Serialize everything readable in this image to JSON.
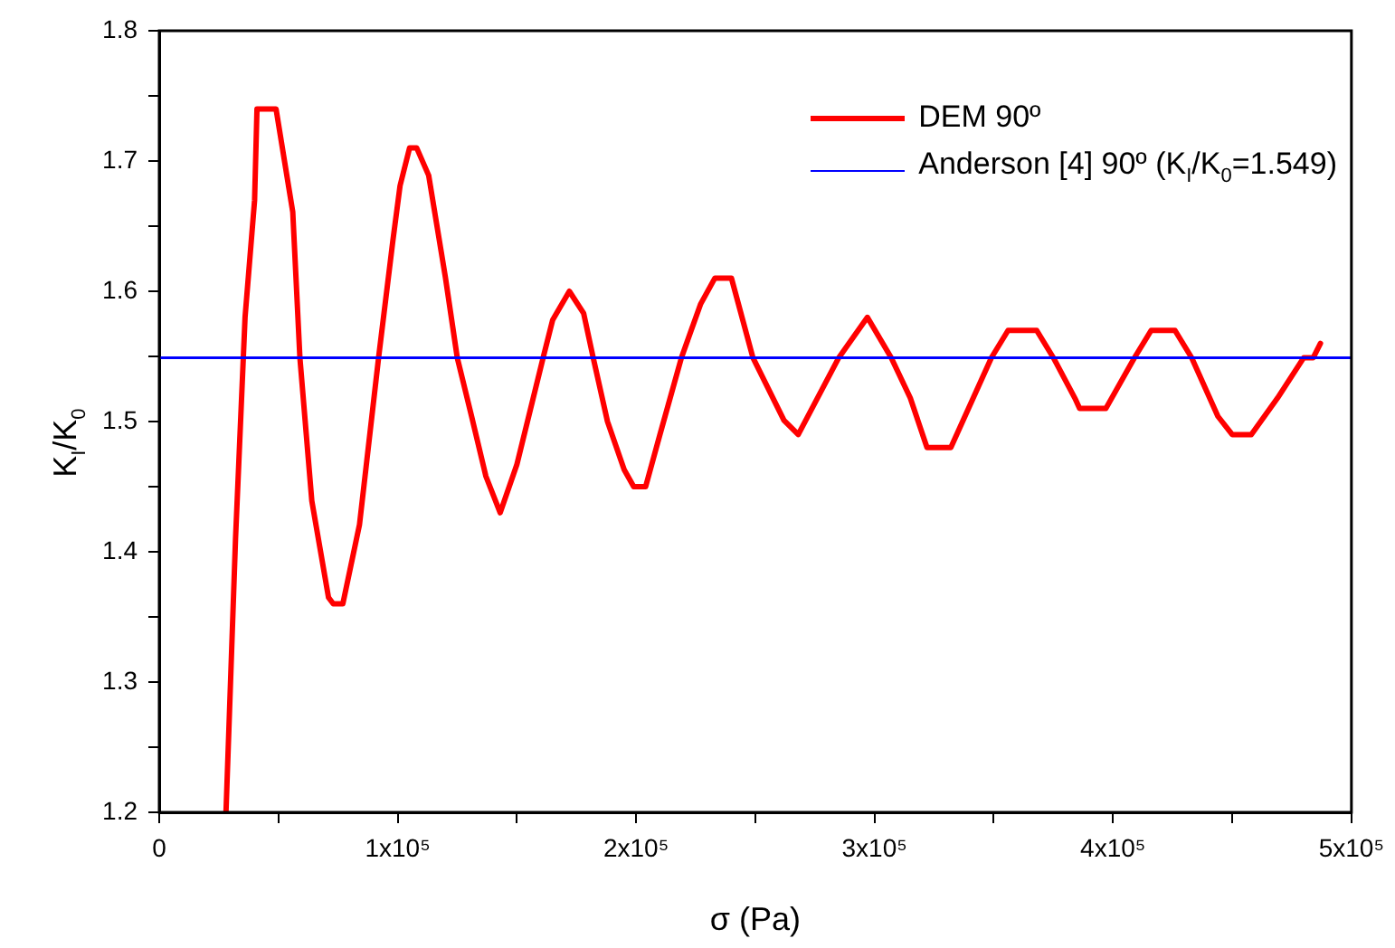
{
  "chart_data": {
    "type": "line",
    "xlabel": "σ (Pa)",
    "ylabel": "K$_{I}$/K$_{0}$",
    "xlim": [
      0,
      500000
    ],
    "ylim": [
      1.2,
      1.8
    ],
    "xticks": [
      {
        "value": 0,
        "label": "0"
      },
      {
        "value": 50000,
        "label": null
      },
      {
        "value": 100000,
        "label": "1x10⁵"
      },
      {
        "value": 150000,
        "label": null
      },
      {
        "value": 200000,
        "label": "2x10⁵"
      },
      {
        "value": 250000,
        "label": null
      },
      {
        "value": 300000,
        "label": "3x10⁵"
      },
      {
        "value": 350000,
        "label": null
      },
      {
        "value": 400000,
        "label": "4x10⁵"
      },
      {
        "value": 450000,
        "label": null
      },
      {
        "value": 500000,
        "label": "5x10⁵"
      }
    ],
    "yticks": [
      1.2,
      {
        "value": 1.25,
        "label": null
      },
      1.3,
      {
        "value": 1.35,
        "label": null
      },
      1.4,
      {
        "value": 1.45,
        "label": null
      },
      1.5,
      {
        "value": 1.55,
        "label": null
      },
      1.6,
      {
        "value": 1.65,
        "label": null
      },
      1.7,
      {
        "value": 1.75,
        "label": null
      },
      1.8
    ],
    "grid": false,
    "legend": "top right",
    "marker": "none",
    "line_style": "solid",
    "series": [
      {
        "name": "DEM 90º",
        "color": "#ff0000",
        "x": [
          28000,
          32000,
          36000,
          40000,
          41000,
          49000,
          56000,
          59000,
          64000,
          71000,
          73000,
          77000,
          84000,
          92000,
          98000,
          101000,
          105000,
          108000,
          113000,
          120000,
          125000,
          131000,
          137000,
          143000,
          150000,
          161000,
          165000,
          172000,
          178000,
          182000,
          188000,
          195000,
          199000,
          204000,
          210000,
          219000,
          227000,
          233000,
          240000,
          249000,
          262000,
          268000,
          285000,
          297000,
          307000,
          315000,
          322000,
          332000,
          349000,
          356000,
          368000,
          375000,
          384000,
          386000,
          397000,
          409000,
          416000,
          426000,
          433000,
          444000,
          450000,
          458000,
          469000,
          480000,
          484000,
          487000
        ],
        "values": [
          1.2,
          1.41,
          1.58,
          1.67,
          1.74,
          1.74,
          1.661,
          1.549,
          1.439,
          1.365,
          1.36,
          1.36,
          1.421,
          1.549,
          1.639,
          1.681,
          1.71,
          1.71,
          1.689,
          1.611,
          1.549,
          1.504,
          1.458,
          1.43,
          1.467,
          1.549,
          1.578,
          1.6,
          1.583,
          1.549,
          1.5,
          1.463,
          1.45,
          1.45,
          1.49,
          1.549,
          1.59,
          1.61,
          1.61,
          1.549,
          1.501,
          1.49,
          1.549,
          1.58,
          1.549,
          1.518,
          1.48,
          1.48,
          1.549,
          1.57,
          1.57,
          1.549,
          1.518,
          1.51,
          1.51,
          1.549,
          1.57,
          1.57,
          1.549,
          1.504,
          1.49,
          1.49,
          1.518,
          1.549,
          1.549,
          1.56
        ]
      }
    ],
    "ref_lines": [
      {
        "axis": "y",
        "value": 1.549,
        "label": "Anderson [4] 90º (K$_{I}$/K$_{0}$=1.549)",
        "color": "#0000ff",
        "line_style": "solid"
      }
    ]
  }
}
